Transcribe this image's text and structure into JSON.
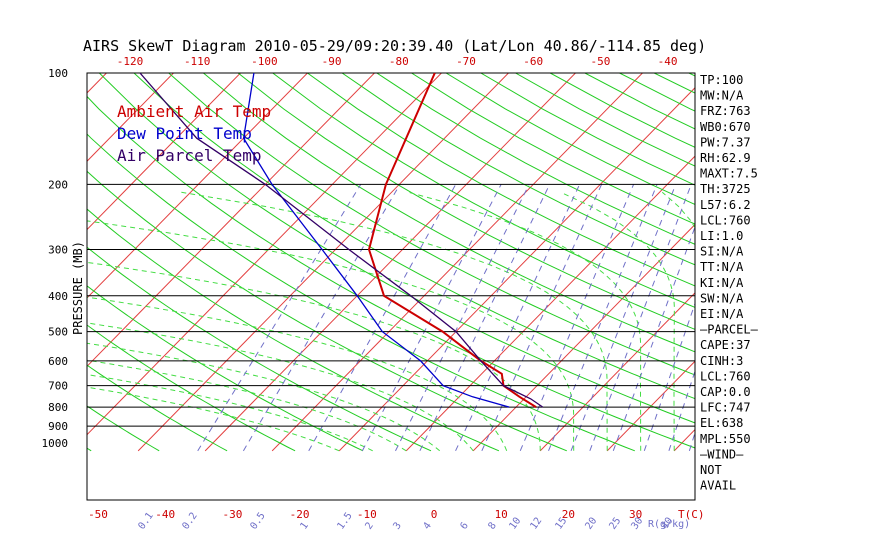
{
  "title": "AIRS SkewT Diagram 2010-05-29/09:20:39.40 (Lat/Lon 40.86/-114.85 deg)",
  "colors": {
    "temp": "#cc0000",
    "dew": "#0000cc",
    "parcel": "#330066",
    "isotherm": "#e34040",
    "dry_adiabat": "#22cc22",
    "moist_adiabat": "#44dd44",
    "mixing_ratio": "#7070c8",
    "isobar": "#000000",
    "axis_text": "#cc0000"
  },
  "legend": [
    {
      "label": "Ambient Air Temp",
      "color": "#cc0000"
    },
    {
      "label": "Dew Point Temp",
      "color": "#0000cc"
    },
    {
      "label": "Air Parcel Temp",
      "color": "#330066"
    }
  ],
  "indices": [
    "TP:100",
    "MW:N/A",
    "FRZ:763",
    "WB0:670",
    "PW:7.37",
    "RH:62.9",
    "MAXT:7.5",
    "TH:3725",
    "L57:6.2",
    "LCL:760",
    "LI:1.0",
    "SI:N/A",
    "TT:N/A",
    "KI:N/A",
    "SW:N/A",
    "EI:N/A",
    "—PARCEL—",
    "CAPE:37",
    "CINH:3",
    "LCL:760",
    "CAP:0.0",
    "LFC:747",
    "EL:638",
    "MPL:550",
    "—WIND—",
    "NOT",
    "AVAIL"
  ],
  "chart_data": {
    "type": "line",
    "ylabel": "PRESSURE (MB)",
    "pressure_ticks": [
      100,
      200,
      300,
      400,
      500,
      600,
      700,
      800,
      900,
      1000
    ],
    "isobar_lines": [
      200,
      300,
      400,
      500,
      600,
      700,
      800,
      900
    ],
    "ylim": [
      1050,
      100
    ],
    "y_scale": "log",
    "bottom_temp_ticks": [
      -50,
      -40,
      -30,
      -20,
      -10,
      0,
      10,
      20,
      30
    ],
    "bottom_temp_label": "T(C)",
    "top_temp_ticks": [
      -120,
      -110,
      -100,
      -90,
      -80,
      -70,
      -60,
      -50,
      -40
    ],
    "mixing_ratio_ticks": [
      "0.1",
      "0.2",
      "0.5",
      "1",
      "1.5",
      "2",
      "3",
      "4",
      "6",
      "8",
      "10",
      "12",
      "15",
      "20",
      "25",
      "30",
      "40"
    ],
    "mixing_ratio_label": "R(g/kg)",
    "series": [
      {
        "name": "Ambient Air Temp",
        "points": [
          [
            100,
            -61
          ],
          [
            200,
            -52
          ],
          [
            300,
            -45
          ],
          [
            400,
            -36
          ],
          [
            500,
            -22
          ],
          [
            600,
            -12
          ],
          [
            650,
            -7
          ],
          [
            700,
            -5
          ],
          [
            750,
            -1
          ],
          [
            800,
            3
          ]
        ]
      },
      {
        "name": "Dew Point Temp",
        "points": [
          [
            100,
            -88
          ],
          [
            150,
            -80
          ],
          [
            200,
            -69
          ],
          [
            300,
            -52
          ],
          [
            400,
            -40
          ],
          [
            500,
            -31
          ],
          [
            600,
            -21
          ],
          [
            700,
            -14
          ],
          [
            750,
            -8
          ],
          [
            800,
            -1
          ]
        ]
      },
      {
        "name": "Air Parcel Temp",
        "points": [
          [
            100,
            -105
          ],
          [
            150,
            -87
          ],
          [
            200,
            -70
          ],
          [
            300,
            -48
          ],
          [
            400,
            -32
          ],
          [
            500,
            -20
          ],
          [
            600,
            -12
          ],
          [
            700,
            -5
          ],
          [
            760,
            1
          ],
          [
            800,
            4
          ]
        ]
      }
    ]
  }
}
